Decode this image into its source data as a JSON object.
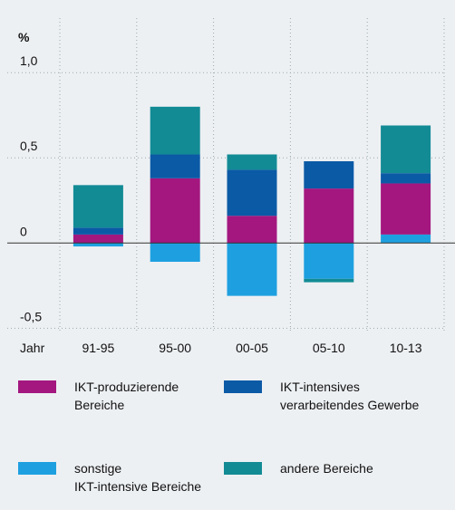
{
  "chart_data": {
    "type": "stacked_bar",
    "y_label": "%",
    "x_label": "Jahr",
    "categories": [
      "91-95",
      "95-00",
      "00-05",
      "05-10",
      "10-13"
    ],
    "series": [
      {
        "name": "sonstige IKT-intensive Bereiche",
        "color": "#1ea0e0",
        "values": [
          -0.02,
          -0.11,
          -0.31,
          -0.21,
          0.05
        ]
      },
      {
        "name": "IKT-produzierende Bereiche",
        "color": "#a3177f",
        "values": [
          0.05,
          0.38,
          0.16,
          0.32,
          0.3
        ]
      },
      {
        "name": "IKT-intensives verarbeitendes Gewerbe",
        "color": "#0b5aa6",
        "values": [
          0.04,
          0.14,
          0.27,
          0.16,
          0.06
        ]
      },
      {
        "name": "andere Bereiche",
        "color": "#128b95",
        "values": [
          0.25,
          0.28,
          0.09,
          -0.02,
          0.28
        ]
      }
    ],
    "ylim": [
      -0.53,
      1.32
    ],
    "yticks": [
      {
        "value": -0.5,
        "label": "-0,5"
      },
      0,
      {
        "value": 0.5,
        "label": "0,5"
      },
      {
        "value": 1.0,
        "label": "1,0"
      }
    ],
    "grid": true
  }
}
